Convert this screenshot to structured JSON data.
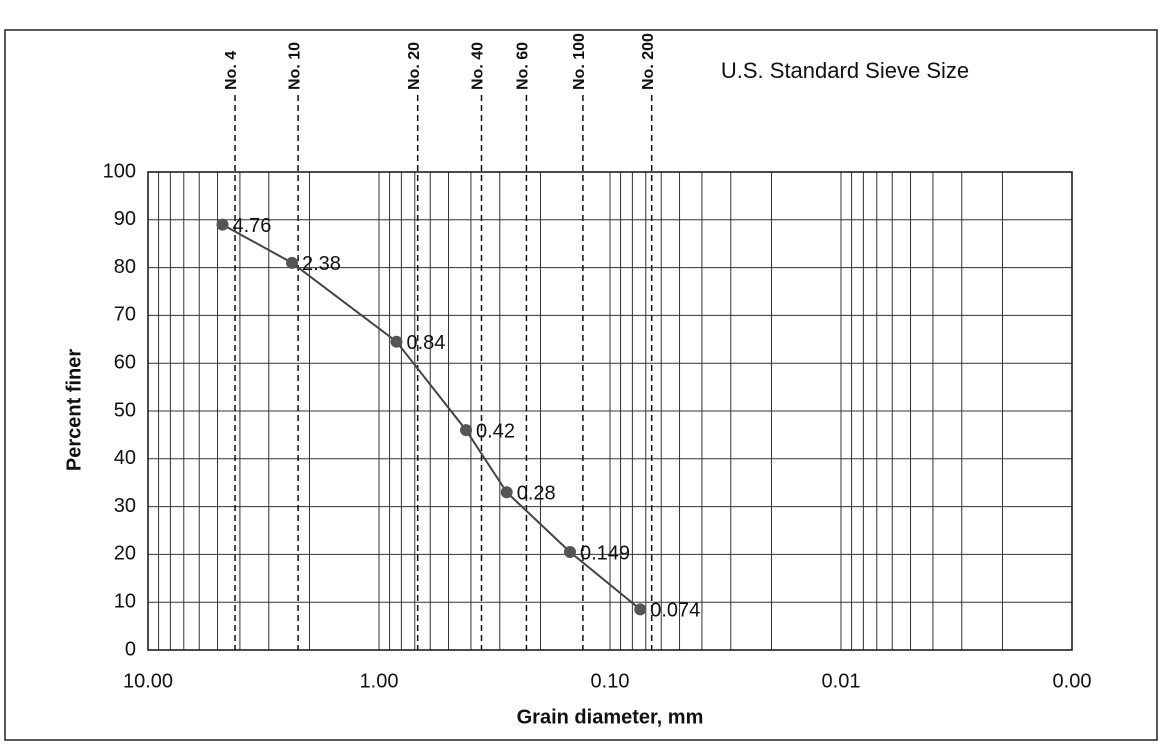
{
  "chart_data": {
    "type": "line",
    "title": "U.S. Standard Sieve Size",
    "xlabel": "Grain diameter, mm",
    "ylabel": "Percent finer",
    "x": [
      4.76,
      2.38,
      0.84,
      0.42,
      0.28,
      0.149,
      0.074
    ],
    "values": [
      89,
      81,
      64.5,
      46,
      33,
      20.5,
      8.5
    ],
    "color": "#444444",
    "marker_color": "#555555",
    "xscale": "log",
    "xlim": [
      10,
      0.001
    ],
    "xticks": [
      {
        "value": 10,
        "label": "10.00"
      },
      {
        "value": 1,
        "label": "1.00"
      },
      {
        "value": 0.1,
        "label": "0.10"
      },
      {
        "value": 0.01,
        "label": "0.01"
      },
      {
        "value": 0.001,
        "label": "0.00"
      }
    ],
    "ylim": [
      0,
      100
    ],
    "yticks": [
      0,
      10,
      20,
      30,
      40,
      50,
      60,
      70,
      80,
      90,
      100
    ],
    "grid": true,
    "sieves": [
      {
        "name": "No. 4",
        "value": 4.2
      },
      {
        "name": "No. 10",
        "value": 2.24
      },
      {
        "name": "No. 20",
        "value": 0.68
      },
      {
        "name": "No. 40",
        "value": 0.36
      },
      {
        "name": "No. 60",
        "value": 0.23
      },
      {
        "name": "No. 100",
        "value": 0.131
      },
      {
        "name": "No. 200",
        "value": 0.066
      }
    ]
  }
}
